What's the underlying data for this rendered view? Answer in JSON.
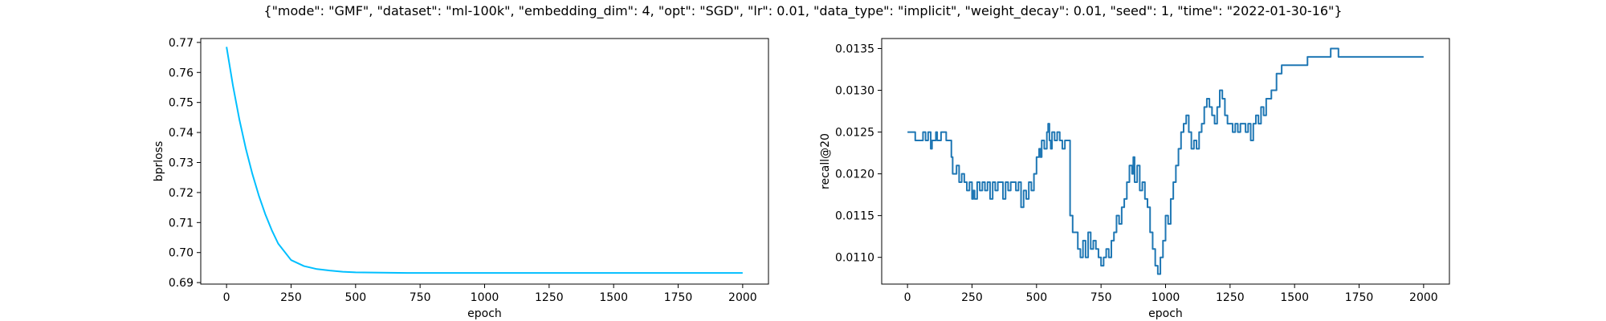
{
  "figure": {
    "title": "{\"mode\": \"GMF\", \"dataset\": \"ml-100k\", \"embedding_dim\": 4, \"opt\": \"SGD\", \"lr\": 0.01, \"data_type\": \"implicit\", \"weight_decay\": 0.01, \"seed\": 1, \"time\": \"2022-01-30-16\"}"
  },
  "chart_data": [
    {
      "type": "line",
      "title": "",
      "xlabel": "epoch",
      "ylabel": "bprloss",
      "xlim": [
        -100,
        2100
      ],
      "ylim": [
        0.6895,
        0.7713
      ],
      "xticks": [
        0,
        250,
        500,
        750,
        1000,
        1250,
        1500,
        1750,
        2000
      ],
      "yticks": [
        0.69,
        0.7,
        0.71,
        0.72,
        0.73,
        0.74,
        0.75,
        0.76,
        0.77
      ],
      "ytick_labels": [
        "0.69",
        "0.70",
        "0.71",
        "0.72",
        "0.73",
        "0.74",
        "0.75",
        "0.76",
        "0.77"
      ],
      "grid": false,
      "color": "#00bfff",
      "series": [
        {
          "x": [
            0,
            25,
            50,
            75,
            100,
            125,
            150,
            175,
            200,
            250,
            300,
            350,
            400,
            450,
            500,
            600,
            700,
            800,
            1000,
            1250,
            1500,
            1750,
            2000
          ],
          "y": [
            0.7685,
            0.7555,
            0.7442,
            0.7345,
            0.7262,
            0.719,
            0.7128,
            0.7075,
            0.703,
            0.6975,
            0.6955,
            0.6945,
            0.694,
            0.6936,
            0.6934,
            0.6933,
            0.6932,
            0.6932,
            0.6932,
            0.6932,
            0.6932,
            0.6932,
            0.6932
          ]
        }
      ]
    },
    {
      "type": "line",
      "title": "",
      "xlabel": "epoch",
      "ylabel": "recall@20",
      "xlim": [
        -100,
        2100
      ],
      "ylim": [
        0.01068,
        0.01362
      ],
      "xticks": [
        0,
        250,
        500,
        750,
        1000,
        1250,
        1500,
        1750,
        2000
      ],
      "yticks": [
        0.011,
        0.0115,
        0.012,
        0.0125,
        0.013,
        0.0135
      ],
      "ytick_labels": [
        "0.0110",
        "0.0115",
        "0.0120",
        "0.0125",
        "0.0130",
        "0.0135"
      ],
      "grid": false,
      "color": "#1f77b4",
      "series": [
        {
          "x": [
            0,
            30,
            40,
            60,
            70,
            80,
            90,
            95,
            100,
            110,
            115,
            120,
            130,
            140,
            150,
            160,
            170,
            175,
            180,
            190,
            200,
            210,
            220,
            230,
            240,
            250,
            255,
            260,
            270,
            280,
            290,
            300,
            310,
            320,
            330,
            340,
            350,
            360,
            370,
            380,
            390,
            400,
            410,
            420,
            430,
            440,
            450,
            460,
            470,
            480,
            490,
            500,
            510,
            515,
            520,
            530,
            540,
            545,
            550,
            555,
            560,
            570,
            580,
            590,
            600,
            610,
            620,
            630,
            640,
            650,
            660,
            670,
            680,
            690,
            700,
            710,
            720,
            730,
            740,
            750,
            760,
            770,
            780,
            790,
            800,
            810,
            820,
            830,
            840,
            850,
            860,
            870,
            875,
            880,
            890,
            900,
            910,
            920,
            930,
            940,
            950,
            960,
            970,
            980,
            990,
            1000,
            1010,
            1020,
            1030,
            1040,
            1050,
            1060,
            1070,
            1080,
            1090,
            1100,
            1110,
            1120,
            1130,
            1140,
            1150,
            1160,
            1170,
            1180,
            1190,
            1200,
            1210,
            1220,
            1230,
            1240,
            1250,
            1260,
            1270,
            1280,
            1290,
            1300,
            1310,
            1320,
            1330,
            1340,
            1350,
            1360,
            1370,
            1380,
            1390,
            1400,
            1410,
            1420,
            1430,
            1440,
            1450,
            1460,
            1470,
            1480,
            1490,
            1500,
            1550,
            1560,
            1600,
            1640,
            1650,
            1670,
            1700,
            1750,
            1800,
            1900,
            2000
          ],
          "y": [
            0.0125,
            0.0124,
            0.0124,
            0.0125,
            0.0124,
            0.0125,
            0.0123,
            0.0124,
            0.0124,
            0.0125,
            0.0124,
            0.0124,
            0.0125,
            0.0125,
            0.0124,
            0.0124,
            0.0122,
            0.012,
            0.012,
            0.0121,
            0.0119,
            0.012,
            0.0119,
            0.0118,
            0.0119,
            0.0117,
            0.0118,
            0.0117,
            0.0119,
            0.0118,
            0.0119,
            0.0118,
            0.0119,
            0.0117,
            0.0119,
            0.0118,
            0.0119,
            0.0119,
            0.0117,
            0.0119,
            0.0118,
            0.0119,
            0.0119,
            0.0118,
            0.0119,
            0.0116,
            0.0118,
            0.0117,
            0.0119,
            0.0118,
            0.012,
            0.0122,
            0.0123,
            0.0122,
            0.0124,
            0.0123,
            0.0125,
            0.0126,
            0.0124,
            0.0123,
            0.0125,
            0.0124,
            0.0125,
            0.0124,
            0.0123,
            0.0124,
            0.0124,
            0.0115,
            0.0113,
            0.0113,
            0.0111,
            0.011,
            0.0112,
            0.011,
            0.0113,
            0.0111,
            0.0112,
            0.0111,
            0.011,
            0.0109,
            0.011,
            0.0111,
            0.011,
            0.0112,
            0.0113,
            0.0115,
            0.0114,
            0.0116,
            0.0117,
            0.0119,
            0.0121,
            0.012,
            0.0122,
            0.0119,
            0.0121,
            0.0118,
            0.0119,
            0.0117,
            0.0116,
            0.0113,
            0.0111,
            0.0109,
            0.0108,
            0.011,
            0.0112,
            0.0115,
            0.0114,
            0.0117,
            0.0119,
            0.0121,
            0.0123,
            0.0125,
            0.0126,
            0.0127,
            0.0125,
            0.0123,
            0.0124,
            0.0123,
            0.0125,
            0.0126,
            0.0128,
            0.0129,
            0.0128,
            0.0127,
            0.0126,
            0.0128,
            0.013,
            0.0129,
            0.0127,
            0.0126,
            0.0126,
            0.0125,
            0.0126,
            0.0125,
            0.0126,
            0.0126,
            0.0125,
            0.0126,
            0.0124,
            0.0126,
            0.0127,
            0.0126,
            0.0128,
            0.0127,
            0.0129,
            0.0129,
            0.013,
            0.013,
            0.0132,
            0.0132,
            0.0133,
            0.0133,
            0.0133,
            0.0133,
            0.0133,
            0.0133,
            0.0134,
            0.0134,
            0.0134,
            0.0135,
            0.0135,
            0.0134,
            0.0134,
            0.0134,
            0.0134,
            0.0134,
            0.0134
          ]
        }
      ]
    }
  ]
}
